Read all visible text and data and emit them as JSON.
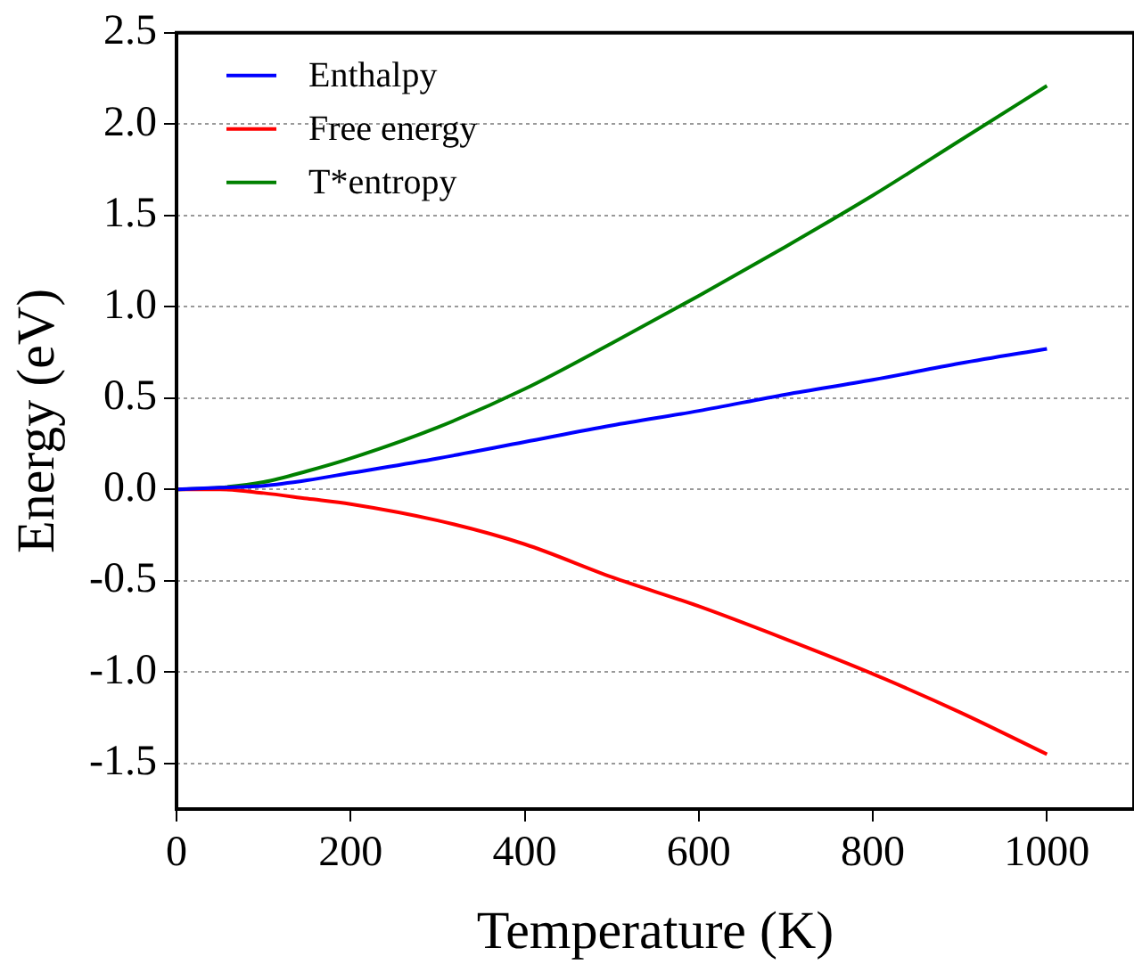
{
  "chart_data": {
    "type": "line",
    "xlabel": "Temperature (K)",
    "ylabel": "Energy (eV)",
    "xlim": [
      0,
      1100
    ],
    "xticks": [
      0,
      200,
      400,
      600,
      800,
      1000
    ],
    "ylim": [
      -1.75,
      2.5
    ],
    "yticks": [
      {
        "value": -1.5,
        "label": "-1.5"
      },
      {
        "value": -1,
        "label": "-1.0"
      },
      {
        "value": -0.5,
        "label": "-0.5"
      },
      {
        "value": 0,
        "label": "0.0"
      },
      {
        "value": 0.5,
        "label": "0.5"
      },
      {
        "value": 1,
        "label": "1.0"
      },
      {
        "value": 1.5,
        "label": "1.5"
      },
      {
        "value": 2,
        "label": "2.0"
      },
      {
        "value": 2.5,
        "label": "2.5"
      }
    ],
    "grid": "y",
    "legend": "top left",
    "marker": "none",
    "line_style": "solid",
    "x": [
      0,
      50,
      100,
      150,
      200,
      300,
      400,
      500,
      600,
      700,
      800,
      900,
      1000
    ],
    "series": [
      {
        "name": "Enthalpy",
        "color": "#0000ff",
        "values": [
          0,
          0.01,
          0.02,
          0.05,
          0.09,
          0.17,
          0.26,
          0.35,
          0.43,
          0.52,
          0.6,
          0.69,
          0.77
        ]
      },
      {
        "name": "Free energy",
        "color": "#ff0000",
        "values": [
          0,
          0,
          -0.02,
          -0.05,
          -0.08,
          -0.17,
          -0.3,
          -0.48,
          -0.64,
          -0.82,
          -1.01,
          -1.22,
          -1.45
        ]
      },
      {
        "name": "T*entropy",
        "color": "#008000",
        "values": [
          0,
          0.01,
          0.04,
          0.1,
          0.17,
          0.34,
          0.55,
          0.8,
          1.06,
          1.33,
          1.61,
          1.91,
          2.21
        ]
      }
    ]
  }
}
